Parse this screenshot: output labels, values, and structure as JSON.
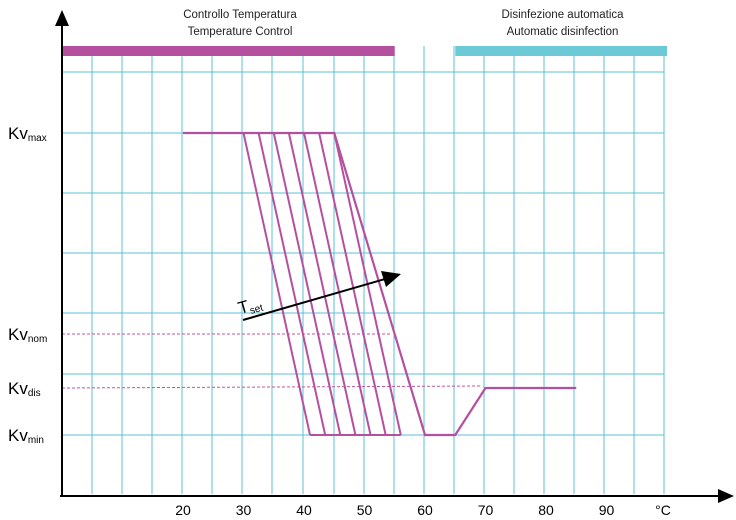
{
  "chart_data": {
    "type": "line",
    "x_unit": "°C",
    "x_ticks": [
      20,
      30,
      40,
      50,
      60,
      70,
      80,
      90
    ],
    "y_ticks": [
      "Kv_max",
      "Kv_nom",
      "Kv_dis",
      "Kv_min"
    ],
    "y_tick_labels": [
      {
        "main": "Kv",
        "sub": "max"
      },
      {
        "main": "Kv",
        "sub": "nom"
      },
      {
        "main": "Kv",
        "sub": "dis"
      },
      {
        "main": "Kv",
        "sub": "min"
      }
    ],
    "grid": true,
    "bands": [
      {
        "line1": "Controllo Temperatura",
        "line2": "Temperature Control",
        "x_start": 0,
        "x_end": 55,
        "color": "#b5509f"
      },
      {
        "line1": "Disinfezione automatica",
        "line2": "Automatic disinfection",
        "x_start": 65,
        "x_end": 100,
        "color": "#6ccad6"
      }
    ],
    "tset_label": {
      "main": "T",
      "sub": "set"
    },
    "curve_color": "#b5509f",
    "main_curve": [
      {
        "x": 20,
        "y": "Kv_max"
      },
      {
        "x": 45,
        "y": "Kv_max"
      },
      {
        "x": 60,
        "y": "Kv_min"
      },
      {
        "x": 65,
        "y": "Kv_min"
      },
      {
        "x": 70,
        "y": "Kv_dis"
      },
      {
        "x": 85,
        "y": "Kv_dis"
      }
    ],
    "setpoint_family": {
      "top_x": [
        30,
        32.5,
        35,
        37.5,
        40,
        42.5,
        45
      ],
      "bottom_x": [
        41,
        43.5,
        46,
        48.5,
        51,
        53.5,
        56
      ],
      "x_min": 41,
      "y_top": "Kv_max",
      "y_bottom": "Kv_min"
    }
  }
}
